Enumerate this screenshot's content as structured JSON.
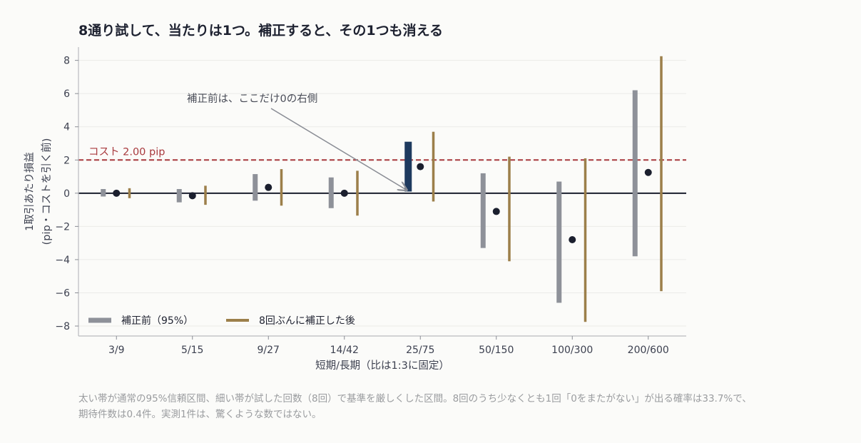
{
  "title": "8通り試して、当たりは1つ。補正すると、その1つも消える",
  "caption_line1": "太い帯が通常の95%信頼区間、細い帯が試した回数（8回）で基準を厳しくした区間。8回のうち少なくとも1回「0をまたがない」が出る確率は33.7%で、",
  "caption_line2": "期待件数は0.4件。実測1件は、驚くような数ではない。",
  "colors": {
    "uncorrected": "#8e9199",
    "highlight": "#1e3a5f",
    "corrected": "#9c7f4a",
    "point": "#1b1f2e",
    "cost_line": "#a8393d",
    "zero_line": "#1b1f2e",
    "grid": "#ebebe8"
  },
  "chart_data": {
    "type": "interval",
    "xlabel": "短期/長期（比は1:3に固定）",
    "ylabel_line1": "1取引あたり損益",
    "ylabel_line2": "(pip・コストを引く前)",
    "ylim": [
      -8.6,
      8.8
    ],
    "yticks": [
      8,
      6,
      4,
      2,
      0,
      -2,
      -4,
      -6,
      -8
    ],
    "ytick_labels": [
      "8",
      "6",
      "4",
      "2",
      "0",
      "−2",
      "−4",
      "−6",
      "−8"
    ],
    "grid": true,
    "categories": [
      "3/9",
      "5/15",
      "9/27",
      "14/42",
      "25/75",
      "50/150",
      "100/300",
      "200/600"
    ],
    "point_estimate": [
      0.0,
      -0.15,
      0.35,
      0.0,
      1.6,
      -1.1,
      -2.8,
      1.25
    ],
    "ci_95_uncorrected": [
      [
        -0.2,
        0.25
      ],
      [
        -0.55,
        0.25
      ],
      [
        -0.45,
        1.15
      ],
      [
        -0.9,
        0.95
      ],
      [
        0.1,
        3.1
      ],
      [
        -3.3,
        1.2
      ],
      [
        -6.6,
        0.7
      ],
      [
        -3.8,
        6.2
      ]
    ],
    "ci_bonferroni_8": [
      [
        -0.3,
        0.3
      ],
      [
        -0.7,
        0.45
      ],
      [
        -0.75,
        1.45
      ],
      [
        -1.35,
        1.35
      ],
      [
        -0.5,
        3.7
      ],
      [
        -4.1,
        2.2
      ],
      [
        -7.75,
        2.1
      ],
      [
        -5.9,
        8.25
      ]
    ],
    "highlight_index": 4,
    "cost_line": {
      "value": 2.0,
      "label": "コスト 2.00 pip"
    },
    "annotation": {
      "text": "補正前は、ここだけ0の右側",
      "target_index": 4,
      "target_y": 0.1
    },
    "legend": {
      "position": "bottom-left",
      "items": [
        {
          "label": "補正前（95%）",
          "series": "uncorrected"
        },
        {
          "label": "8回ぶんに補正した後",
          "series": "corrected"
        }
      ]
    }
  }
}
